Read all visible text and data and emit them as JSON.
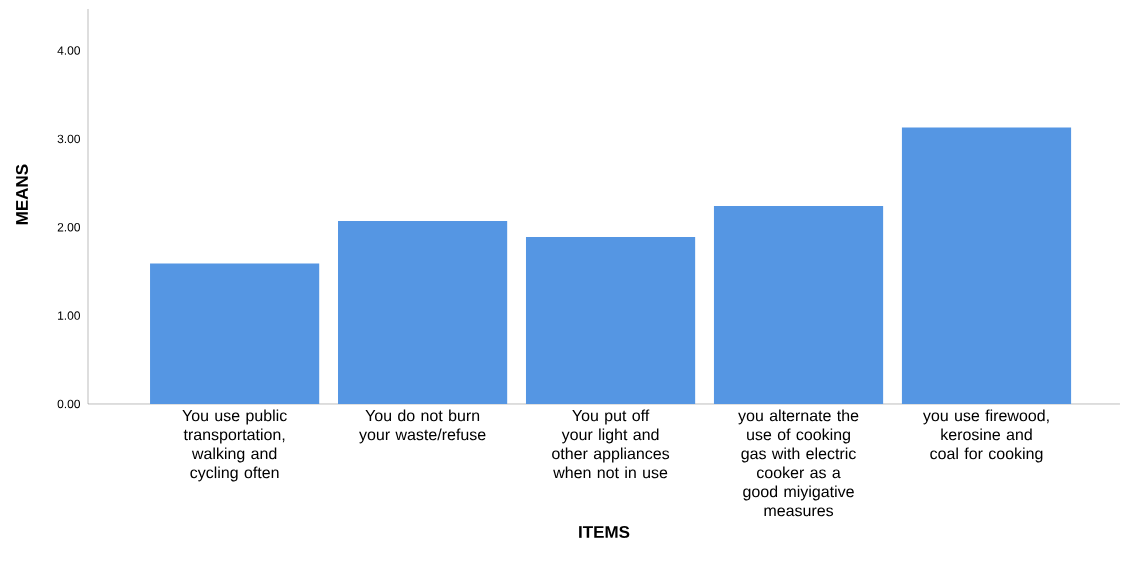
{
  "chart_data": {
    "type": "bar",
    "xlabel": "ITEMS",
    "ylabel": "MEANS",
    "categories": [
      "You use public transportation, walking and cycling often",
      "You do not burn your waste/refuse",
      "You put off your light and other appliances when not in use",
      "you alternate the use of cooking gas with electric cooker as a good miyigative measures",
      "you use firewood, kerosine and coal for cooking"
    ],
    "values": [
      1.59,
      2.07,
      1.89,
      2.24,
      3.13
    ],
    "color": "#5596e3",
    "ylim": [
      0,
      4.47
    ],
    "yticks": [
      {
        "value": 0,
        "label": "0.00"
      },
      {
        "value": 1,
        "label": "1.00"
      },
      {
        "value": 2,
        "label": "2.00"
      },
      {
        "value": 3,
        "label": "3.00"
      },
      {
        "value": 4,
        "label": "4.00"
      }
    ],
    "grid": false
  }
}
